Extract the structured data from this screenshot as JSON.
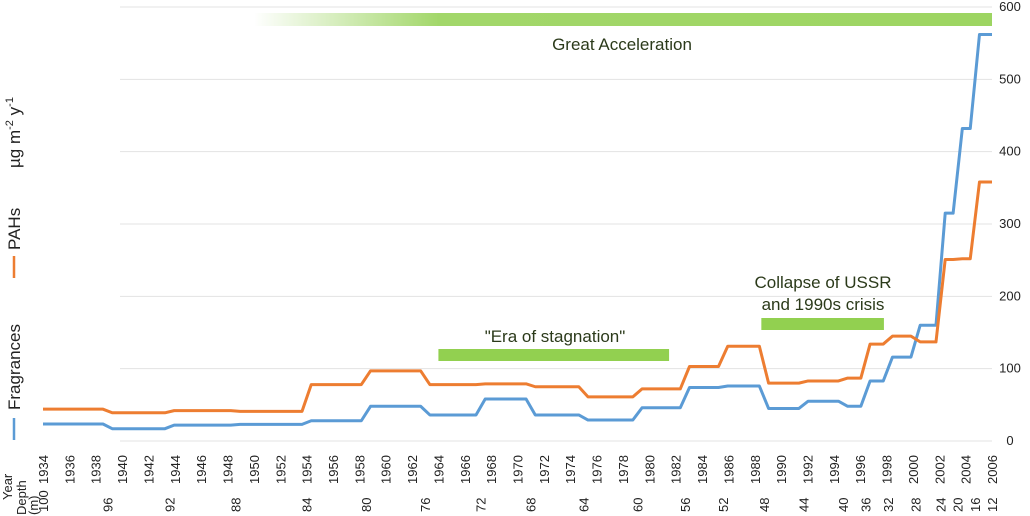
{
  "chart_data": {
    "type": "line",
    "step": true,
    "x_axis": {
      "label": "Year",
      "min": 1934,
      "max": 2006,
      "ticks": [
        1934,
        1936,
        1938,
        1940,
        1942,
        1944,
        1946,
        1948,
        1950,
        1952,
        1954,
        1956,
        1958,
        1960,
        1962,
        1964,
        1966,
        1968,
        1970,
        1972,
        1974,
        1976,
        1978,
        1980,
        1982,
        1984,
        1986,
        1988,
        1990,
        1992,
        1994,
        1996,
        1998,
        2000,
        2002,
        2004,
        2006
      ]
    },
    "depth_axis": {
      "label": "Depth (m)",
      "ticks": [
        {
          "depth": "100",
          "year": 1934
        },
        {
          "depth": "96",
          "year": 1938.9
        },
        {
          "depth": "92",
          "year": 1943.6
        },
        {
          "depth": "88",
          "year": 1948.6
        },
        {
          "depth": "84",
          "year": 1954.0
        },
        {
          "depth": "80",
          "year": 1958.5
        },
        {
          "depth": "76",
          "year": 1963.0
        },
        {
          "depth": "72",
          "year": 1967.2
        },
        {
          "depth": "68",
          "year": 1971.0
        },
        {
          "depth": "64",
          "year": 1975.0
        },
        {
          "depth": "60",
          "year": 1979.1
        },
        {
          "depth": "56",
          "year": 1982.7
        },
        {
          "depth": "52",
          "year": 1985.6
        },
        {
          "depth": "48",
          "year": 1988.7
        },
        {
          "depth": "44",
          "year": 1991.7
        },
        {
          "depth": "40",
          "year": 1994.7
        },
        {
          "depth": "36",
          "year": 1996.4
        },
        {
          "depth": "32",
          "year": 1998.1
        },
        {
          "depth": "28",
          "year": 2000.2
        },
        {
          "depth": "24",
          "year": 2002.1
        },
        {
          "depth": "20",
          "year": 2003.4
        },
        {
          "depth": "16",
          "year": 2004.7
        },
        {
          "depth": "12",
          "year": 2006
        }
      ]
    },
    "y_axis": {
      "label": "µg m-2 y-1",
      "label_main": "µg m",
      "sup1": "-2",
      "mid": " y",
      "sup2": "-1",
      "min": 0,
      "max": 600,
      "ticks": [
        0,
        100,
        200,
        300,
        400,
        500,
        600
      ],
      "position": "right"
    },
    "grid": true,
    "interval_boundaries": [
      1934,
      1938.9,
      1943.6,
      1948.6,
      1954.0,
      1958.5,
      1963.0,
      1967.2,
      1971.0,
      1975.0,
      1979.1,
      1982.7,
      1985.6,
      1988.7,
      1991.7,
      1994.7,
      1996.4,
      1998.1,
      2000.2,
      2002.1,
      2003.4,
      2004.7,
      2006
    ],
    "series": [
      {
        "name": "Fragrances",
        "color": "#5b9bd5",
        "values": [
          23.5,
          17,
          22,
          23,
          28,
          48,
          36,
          58,
          36,
          29,
          46,
          74,
          76,
          45,
          55,
          48,
          83,
          116,
          160,
          315,
          432,
          562
        ]
      },
      {
        "name": "PAHs",
        "color": "#ed7d31",
        "values": [
          44,
          39,
          42,
          41,
          78,
          97,
          78,
          79,
          75,
          61,
          72,
          103,
          131,
          80,
          83,
          87,
          134,
          145,
          137,
          251,
          252,
          358
        ]
      }
    ],
    "legend": "left-vertical",
    "annotations": [
      {
        "text": "Great Acceleration",
        "start": 1950,
        "end": 2006,
        "value": 580,
        "gradient": true
      },
      {
        "text": "\"Era of stagnation\"",
        "start": 1964,
        "end": 1981.5,
        "value": 118
      },
      {
        "line1": "Collapse of USSR",
        "line2": "and 1990s crisis",
        "start": 1988.5,
        "end": 1997.8,
        "value": 162
      }
    ],
    "bar_color": "#92d050"
  }
}
